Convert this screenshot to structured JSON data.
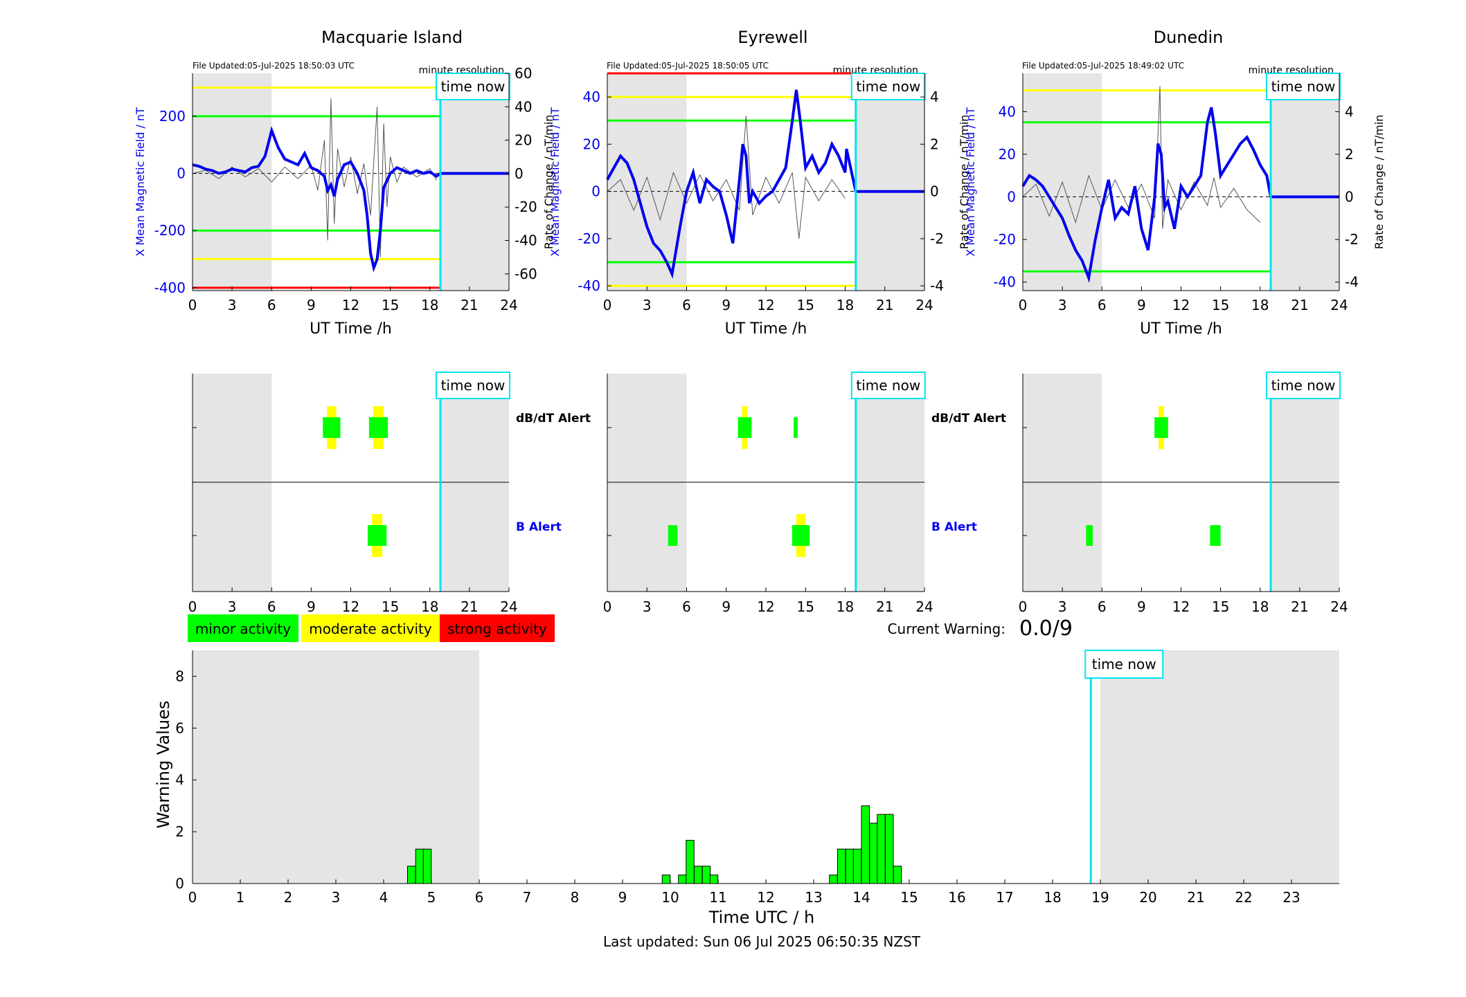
{
  "stations": [
    {
      "name": "Macquarie Island",
      "file_updated": "File Updated:05-Jul-2025 18:50:03 UTC",
      "resolution": "minute resolution",
      "left_yticks": [
        "200",
        "0",
        "-200",
        "-400"
      ],
      "right_yticks": [
        "60",
        "40",
        "20",
        "0",
        "-20",
        "-40",
        "-60"
      ],
      "left_ylabel": "X Mean Magnetic Field / nT",
      "right_ylabel": "Rate of Change / nT/min"
    },
    {
      "name": "Eyrewell",
      "file_updated": "File Updated:05-Jul-2025 18:50:05 UTC",
      "resolution": "minute resolution",
      "left_yticks": [
        "40",
        "20",
        "0",
        "-20",
        "-40"
      ],
      "right_yticks": [
        "4",
        "2",
        "0",
        "-2",
        "-4"
      ],
      "left_ylabel": "X Mean Magnetic Field / nT",
      "right_ylabel": "Rate of Change / nT/min"
    },
    {
      "name": "Dunedin",
      "file_updated": "File Updated:05-Jul-2025 18:49:02 UTC",
      "resolution": "minute resolution",
      "left_yticks": [
        "40",
        "20",
        "0",
        "-20",
        "-40"
      ],
      "right_yticks": [
        "4",
        "2",
        "0",
        "-2",
        "-4"
      ],
      "left_ylabel": "X Mean Magnetic Field / nT",
      "right_ylabel": "Rate of Change / nT/min"
    }
  ],
  "hour_ticks": [
    "0",
    "3",
    "6",
    "9",
    "12",
    "15",
    "18",
    "21",
    "24"
  ],
  "ut_xlabel": "UT Time /h",
  "time_now_label": "time now",
  "alerts": {
    "dbdt": "dB/dT Alert",
    "b": "B Alert"
  },
  "legend": [
    "minor activity",
    "moderate activity",
    "strong activity"
  ],
  "current_warning": {
    "label": "Current Warning:",
    "value": "0.0/9"
  },
  "warning_chart": {
    "ylabel": "Warning Values",
    "xlabel": "Time UTC / h",
    "yticks": [
      "0",
      "2",
      "4",
      "6",
      "8"
    ],
    "xticks": [
      "0",
      "1",
      "2",
      "3",
      "4",
      "5",
      "6",
      "7",
      "8",
      "9",
      "10",
      "11",
      "12",
      "13",
      "14",
      "15",
      "16",
      "17",
      "18",
      "19",
      "20",
      "21",
      "22",
      "23"
    ]
  },
  "last_updated": "Last updated: Sun 06 Jul 2025 06:50:35 NZST",
  "colors": {
    "minor": "#00ff00",
    "moderate": "#ffff00",
    "strong": "#ff0000",
    "field": "#0000ee",
    "time_now": "#00e5ee",
    "shade": "#e5e5e5"
  },
  "chart_data": [
    {
      "type": "line",
      "station": "Macquarie Island",
      "xlim": [
        0,
        24
      ],
      "ylim_left": [
        -410,
        350
      ],
      "ylim_right": [
        -70,
        60
      ],
      "time_now": 18.8,
      "threshold_lines": [
        {
          "level": "moderate",
          "values": [
            300,
            -300
          ]
        },
        {
          "level": "minor",
          "values": [
            200,
            -200
          ]
        },
        {
          "level": "strong",
          "values": [
            -400
          ]
        }
      ],
      "field_series": {
        "x": [
          0,
          0.5,
          1,
          1.5,
          2,
          2.5,
          3,
          3.5,
          4,
          4.5,
          5,
          5.5,
          6,
          6.5,
          7,
          7.5,
          8,
          8.5,
          9,
          9.5,
          10,
          10.25,
          10.5,
          10.75,
          11,
          11.5,
          12,
          12.5,
          13,
          13.25,
          13.5,
          13.75,
          14,
          14.25,
          14.5,
          15,
          15.5,
          16,
          16.5,
          17,
          17.5,
          18,
          18.5,
          18.8,
          24
        ],
        "y": [
          30,
          25,
          15,
          10,
          0,
          5,
          15,
          10,
          5,
          20,
          25,
          60,
          150,
          90,
          50,
          40,
          30,
          70,
          20,
          10,
          -10,
          -60,
          -40,
          -80,
          -20,
          30,
          40,
          0,
          -60,
          -150,
          -280,
          -330,
          -300,
          -200,
          -50,
          0,
          20,
          10,
          0,
          10,
          0,
          5,
          -10,
          0,
          0
        ]
      },
      "rate_series": {
        "x": [
          0,
          1,
          2,
          3,
          4,
          5,
          6,
          7,
          8,
          9,
          9.5,
          10,
          10.25,
          10.5,
          10.75,
          11,
          11.5,
          12,
          12.5,
          13,
          13.5,
          14,
          14.25,
          14.5,
          14.75,
          15,
          15.5,
          16,
          17,
          18,
          18.5
        ],
        "y": [
          0,
          2,
          -3,
          4,
          -2,
          3,
          -5,
          4,
          -3,
          5,
          -10,
          20,
          -40,
          45,
          -30,
          15,
          -8,
          10,
          -12,
          6,
          -25,
          40,
          -50,
          30,
          -20,
          10,
          -5,
          4,
          -2,
          3,
          -4
        ]
      },
      "alerts": {
        "dbdt": [
          {
            "start": 10.2,
            "end": 10.9,
            "level": "moderate"
          },
          {
            "start": 13.7,
            "end": 14.5,
            "level": "moderate"
          }
        ],
        "b": [
          {
            "start": 13.6,
            "end": 14.4,
            "level": "moderate"
          }
        ]
      }
    },
    {
      "type": "line",
      "station": "Eyrewell",
      "xlim": [
        0,
        24
      ],
      "ylim_left": [
        -42,
        50
      ],
      "ylim_right": [
        -4.2,
        5
      ],
      "time_now": 18.8,
      "threshold_lines": [
        {
          "level": "strong",
          "values": [
            50
          ]
        },
        {
          "level": "moderate",
          "values": [
            40,
            -40
          ]
        },
        {
          "level": "minor",
          "values": [
            30,
            -30
          ]
        }
      ],
      "field_series": {
        "x": [
          0,
          0.5,
          1,
          1.5,
          2,
          2.5,
          3,
          3.5,
          4,
          4.5,
          4.9,
          5.5,
          6,
          6.5,
          7,
          7.5,
          8,
          8.5,
          9,
          9.5,
          10,
          10.25,
          10.5,
          10.75,
          11,
          11.5,
          12,
          12.5,
          13,
          13.5,
          14,
          14.3,
          14.6,
          15,
          15.5,
          16,
          16.5,
          17,
          17.5,
          18,
          18.1,
          18.8,
          24
        ],
        "y": [
          5,
          10,
          15,
          12,
          5,
          -5,
          -15,
          -22,
          -25,
          -30,
          -35,
          -15,
          0,
          8,
          -5,
          5,
          2,
          0,
          -10,
          -22,
          5,
          20,
          15,
          -5,
          0,
          -5,
          -2,
          0,
          5,
          10,
          30,
          43,
          30,
          10,
          15,
          8,
          12,
          20,
          15,
          8,
          18,
          0,
          0
        ]
      },
      "rate_series": {
        "x": [
          0,
          1,
          2,
          3,
          4,
          5,
          6,
          7,
          8,
          9,
          10,
          10.5,
          11,
          12,
          13,
          14,
          14.5,
          15,
          16,
          17,
          18
        ],
        "y": [
          0,
          0.5,
          -0.8,
          0.6,
          -1.2,
          0.8,
          -0.5,
          0.7,
          -0.4,
          0.5,
          -0.8,
          3.2,
          -1,
          0.6,
          -0.5,
          0.8,
          -2,
          0.6,
          -0.4,
          0.5,
          -0.3
        ]
      },
      "alerts": {
        "dbdt": [
          {
            "start": 10.2,
            "end": 10.6,
            "level": "moderate"
          },
          {
            "start": 14.1,
            "end": 14.4,
            "level": "minor"
          }
        ],
        "b": [
          {
            "start": 4.6,
            "end": 5.3,
            "level": "minor"
          },
          {
            "start": 14.3,
            "end": 15.0,
            "level": "moderate"
          }
        ]
      }
    },
    {
      "type": "line",
      "station": "Dunedin",
      "xlim": [
        0,
        24
      ],
      "ylim_left": [
        -44,
        58
      ],
      "ylim_right": [
        -4.4,
        5.8
      ],
      "time_now": 18.8,
      "threshold_lines": [
        {
          "level": "moderate",
          "values": [
            50
          ]
        },
        {
          "level": "minor",
          "values": [
            35,
            -35
          ]
        }
      ],
      "field_series": {
        "x": [
          0,
          0.5,
          1,
          1.5,
          2,
          2.5,
          3,
          3.5,
          4,
          4.5,
          5,
          5.5,
          6,
          6.5,
          7,
          7.5,
          8,
          8.5,
          9,
          9.5,
          10,
          10.25,
          10.5,
          10.75,
          11,
          11.5,
          12,
          12.5,
          13,
          13.5,
          14,
          14.3,
          14.6,
          15,
          15.5,
          16,
          16.5,
          17,
          17.5,
          18,
          18.5,
          18.8,
          24
        ],
        "y": [
          5,
          10,
          8,
          5,
          0,
          -5,
          -10,
          -18,
          -25,
          -30,
          -38,
          -20,
          -5,
          8,
          -10,
          -5,
          -8,
          5,
          -15,
          -25,
          0,
          25,
          20,
          -5,
          -2,
          -15,
          5,
          0,
          5,
          10,
          35,
          42,
          30,
          10,
          15,
          20,
          25,
          28,
          22,
          15,
          10,
          0,
          0
        ]
      },
      "rate_series": {
        "x": [
          0,
          1,
          2,
          3,
          4,
          5,
          6,
          7,
          8,
          9,
          10,
          10.4,
          10.6,
          11,
          12,
          13,
          14,
          14.5,
          15,
          16,
          17,
          18
        ],
        "y": [
          0,
          0.6,
          -0.9,
          0.7,
          -1.2,
          1,
          -0.6,
          0.8,
          -0.5,
          0.6,
          -1,
          5.2,
          -1.5,
          0.8,
          -0.6,
          0.7,
          -0.4,
          0.9,
          -0.5,
          0.4,
          -0.6,
          -1.2
        ]
      },
      "alerts": {
        "dbdt": [
          {
            "start": 10.3,
            "end": 10.7,
            "level": "moderate"
          }
        ],
        "b": [
          {
            "start": 4.8,
            "end": 5.3,
            "level": "minor"
          },
          {
            "start": 14.2,
            "end": 15.0,
            "level": "minor"
          }
        ]
      }
    },
    {
      "type": "bar",
      "title": "Warning Values",
      "xlim": [
        0,
        24
      ],
      "ylim": [
        0,
        9
      ],
      "time_now": 18.8,
      "bar_width_h": 0.166,
      "x": [
        4.5,
        4.67,
        4.83,
        9.83,
        10.17,
        10.33,
        10.5,
        10.67,
        10.83,
        13.33,
        13.5,
        13.67,
        13.83,
        14.0,
        14.17,
        14.33,
        14.5,
        14.67
      ],
      "values": [
        0.67,
        1.33,
        1.33,
        0.33,
        0.33,
        1.67,
        0.67,
        0.67,
        0.33,
        0.33,
        1.33,
        1.33,
        1.33,
        3.0,
        2.33,
        2.67,
        2.67,
        0.67
      ]
    }
  ]
}
